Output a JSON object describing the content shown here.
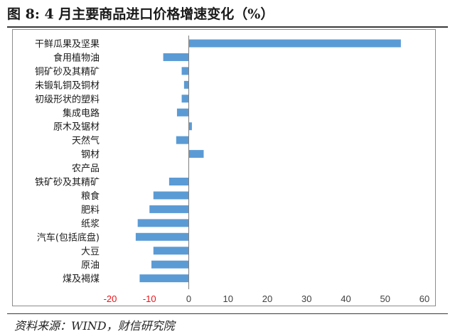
{
  "figure_title": "图 8:  4 月主要商品进口价格增速变化（%）",
  "source_note": "资料来源：WIND，财信研究院",
  "colors": {
    "bar": "#5b9bd5",
    "negative_tick": "#e8141a",
    "positive_tick": "#404040",
    "axis": "#808080"
  },
  "chart_data": {
    "type": "bar",
    "orientation": "horizontal",
    "title": "4 月主要商品进口价格增速变化（%）",
    "xlabel": "",
    "ylabel": "",
    "xlim": [
      -20,
      60
    ],
    "xticks": [
      -20,
      -10,
      0,
      10,
      20,
      30,
      40,
      50,
      60
    ],
    "xtick_labels": [
      "-20",
      "-10",
      "0",
      "10",
      "20",
      "30",
      "40",
      "50",
      "60"
    ],
    "grid": false,
    "legend": "none",
    "categories": [
      "干鲜瓜果及坚果",
      "食用植物油",
      "铜矿砂及其精矿",
      "未锻轧铜及铜材",
      "初级形状的塑料",
      "集成电路",
      "原木及锯材",
      "天然气",
      "钢材",
      "农产品",
      "铁矿砂及其精矿",
      "粮食",
      "肥料",
      "纸浆",
      "汽车(包括底盘)",
      "大豆",
      "原油",
      "煤及褐煤"
    ],
    "values": [
      54,
      -6.5,
      -1.8,
      -1.2,
      -1.8,
      -3,
      0.8,
      -3.2,
      3.8,
      0,
      -5,
      -9,
      -10,
      -13,
      -13.5,
      -9,
      -9.5,
      -12.5
    ]
  }
}
